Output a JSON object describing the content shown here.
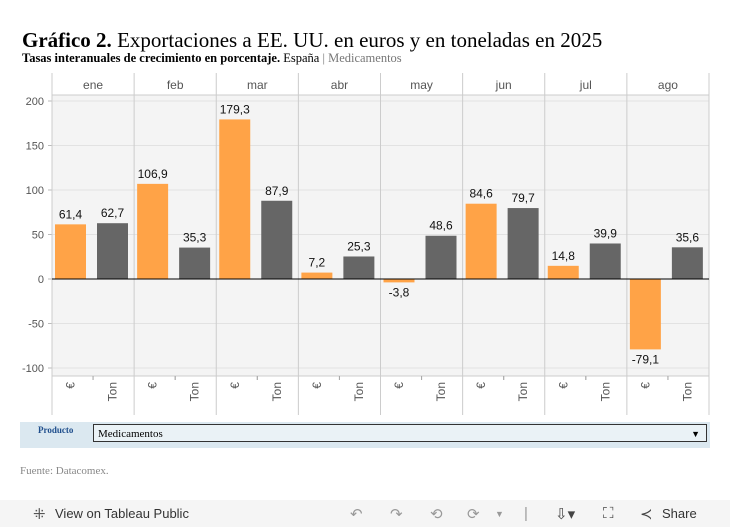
{
  "title_bold": "Gráfico 2.",
  "title_rest": " Exportaciones a EE. UU. en euros y en toneladas en 2025",
  "subtitle_bold": "Tasas interanuales de crecimiento en porcentaje.",
  "subtitle_country": " España ",
  "subtitle_sep": "|",
  "subtitle_product": " Medicamentos",
  "filter": {
    "label": "Producto",
    "value": "Medicamentos"
  },
  "source": "Fuente: Datacomex.",
  "toolbar": {
    "view_label": "View on Tableau Public",
    "share_label": "Share"
  },
  "colors": {
    "euro": "#ffa347",
    "ton": "#666666"
  },
  "chart_data": {
    "type": "bar",
    "categories": [
      "ene",
      "feb",
      "mar",
      "abr",
      "may",
      "jun",
      "jul",
      "ago"
    ],
    "subcategories": [
      "€",
      "Ton"
    ],
    "series": [
      {
        "name": "€",
        "values": [
          61.4,
          106.9,
          179.3,
          7.2,
          -3.8,
          84.6,
          14.8,
          -79.1
        ]
      },
      {
        "name": "Ton",
        "values": [
          62.7,
          35.3,
          87.9,
          25.3,
          48.6,
          79.7,
          39.9,
          35.6
        ]
      }
    ],
    "value_labels": {
      "€": [
        "61,4",
        "106,9",
        "179,3",
        "7,2",
        "-3,8",
        "84,6",
        "14,8",
        "-79,1"
      ],
      "Ton": [
        "62,7",
        "35,3",
        "87,9",
        "25,3",
        "48,6",
        "79,7",
        "39,9",
        "35,6"
      ]
    },
    "yticks": [
      200,
      150,
      100,
      50,
      0,
      -50,
      -100
    ],
    "ylim": [
      -108,
      207
    ],
    "grid": true
  }
}
